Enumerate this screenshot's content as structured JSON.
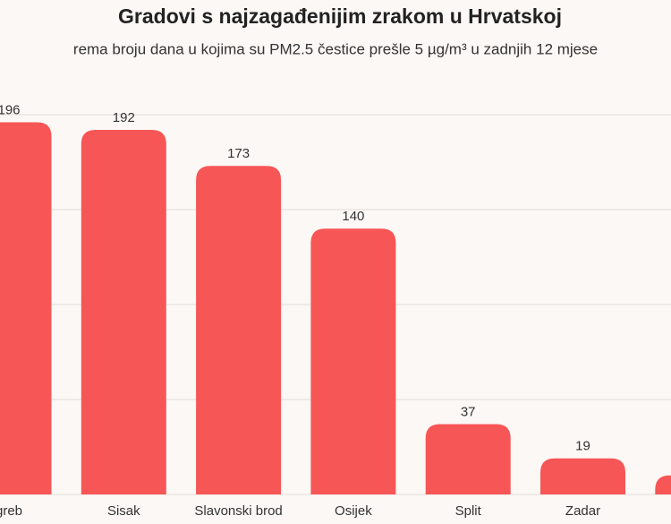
{
  "chart_data": {
    "type": "bar",
    "title": "Gradovi s najzagađenijim zrakom u Hrvatskoj",
    "subtitle": "rema broju dana u kojima su PM2.5 čestice prešle 5 µg/m³ u zadnjih 12 mjese",
    "categories": [
      "greb",
      "Sisak",
      "Slavonski brod",
      "Osijek",
      "Split",
      "Zadar",
      null
    ],
    "values": [
      196,
      192,
      173,
      140,
      37,
      19,
      10
    ],
    "color": "#f65656",
    "ylim": [
      0,
      200
    ],
    "yticks": [
      0,
      50,
      100,
      150,
      200
    ],
    "grid": true
  }
}
